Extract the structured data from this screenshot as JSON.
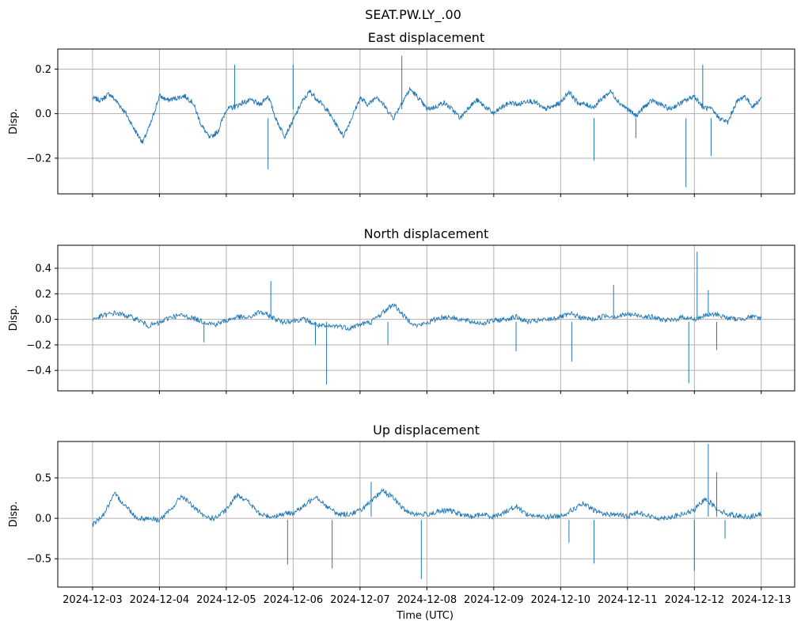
{
  "figure": {
    "suptitle": "SEAT.PW.LY_.00",
    "xlabel": "Time (UTC)",
    "line_color": "#1f77b4",
    "grid_color": "#b0b0b0"
  },
  "chart_data": [
    {
      "type": "line",
      "title": "East displacement",
      "ylabel": "Disp.",
      "ylim": [
        -0.36,
        0.29
      ],
      "yticks": [
        -0.2,
        0.0,
        0.2
      ],
      "ytick_labels": [
        "−0.2",
        "0.0",
        "0.2"
      ],
      "x_start": "2024-12-03",
      "x_end": "2024-12-13",
      "xticks": [
        "2024-12-03",
        "2024-12-04",
        "2024-12-05",
        "2024-12-06",
        "2024-12-07",
        "2024-12-08",
        "2024-12-09",
        "2024-12-10",
        "2024-12-11",
        "2024-12-12",
        "2024-12-13"
      ],
      "grid": true,
      "series": [
        {
          "x": [
            "2024-12-03T00:00",
            "2024-12-03T03:00",
            "2024-12-03T06:00",
            "2024-12-03T09:00",
            "2024-12-03T12:00",
            "2024-12-03T15:00",
            "2024-12-03T18:00",
            "2024-12-03T21:00",
            "2024-12-04T00:00",
            "2024-12-04T03:00",
            "2024-12-04T06:00",
            "2024-12-04T09:00",
            "2024-12-04T12:00",
            "2024-12-04T15:00",
            "2024-12-04T18:00",
            "2024-12-04T21:00",
            "2024-12-05T00:00",
            "2024-12-05T03:00",
            "2024-12-05T06:00",
            "2024-12-05T09:00",
            "2024-12-05T12:00",
            "2024-12-05T15:00",
            "2024-12-05T18:00",
            "2024-12-05T21:00",
            "2024-12-06T00:00",
            "2024-12-06T03:00",
            "2024-12-06T06:00",
            "2024-12-06T09:00",
            "2024-12-06T12:00",
            "2024-12-06T15:00",
            "2024-12-06T18:00",
            "2024-12-06T21:00",
            "2024-12-07T00:00",
            "2024-12-07T03:00",
            "2024-12-07T06:00",
            "2024-12-07T09:00",
            "2024-12-07T12:00",
            "2024-12-07T15:00",
            "2024-12-07T18:00",
            "2024-12-07T21:00",
            "2024-12-08T00:00",
            "2024-12-08T03:00",
            "2024-12-08T06:00",
            "2024-12-08T09:00",
            "2024-12-08T12:00",
            "2024-12-08T15:00",
            "2024-12-08T18:00",
            "2024-12-08T21:00",
            "2024-12-09T00:00",
            "2024-12-09T03:00",
            "2024-12-09T06:00",
            "2024-12-09T09:00",
            "2024-12-09T12:00",
            "2024-12-09T15:00",
            "2024-12-09T18:00",
            "2024-12-09T21:00",
            "2024-12-10T00:00",
            "2024-12-10T03:00",
            "2024-12-10T06:00",
            "2024-12-10T09:00",
            "2024-12-10T12:00",
            "2024-12-10T15:00",
            "2024-12-10T18:00",
            "2024-12-10T21:00",
            "2024-12-11T00:00",
            "2024-12-11T03:00",
            "2024-12-11T06:00",
            "2024-12-11T09:00",
            "2024-12-11T12:00",
            "2024-12-11T15:00",
            "2024-12-11T18:00",
            "2024-12-11T21:00",
            "2024-12-12T00:00",
            "2024-12-12T03:00",
            "2024-12-12T06:00",
            "2024-12-12T09:00",
            "2024-12-12T12:00",
            "2024-12-12T15:00",
            "2024-12-12T18:00",
            "2024-12-12T21:00",
            "2024-12-13T00:00"
          ],
          "y": [
            0.07,
            0.06,
            0.09,
            0.05,
            0.0,
            -0.07,
            -0.13,
            -0.04,
            0.08,
            0.06,
            0.07,
            0.08,
            0.05,
            -0.05,
            -0.11,
            -0.08,
            0.02,
            0.03,
            0.05,
            0.06,
            0.04,
            0.08,
            -0.03,
            -0.1,
            -0.03,
            0.05,
            0.1,
            0.06,
            0.02,
            -0.04,
            -0.1,
            -0.02,
            0.07,
            0.04,
            0.08,
            0.03,
            -0.02,
            0.05,
            0.11,
            0.07,
            0.02,
            0.03,
            0.05,
            0.02,
            -0.02,
            0.03,
            0.06,
            0.03,
            0.0,
            0.03,
            0.05,
            0.04,
            0.06,
            0.05,
            0.02,
            0.03,
            0.05,
            0.1,
            0.05,
            0.04,
            0.03,
            0.07,
            0.1,
            0.05,
            0.02,
            -0.01,
            0.03,
            0.06,
            0.04,
            0.02,
            0.04,
            0.06,
            0.08,
            0.03,
            0.02,
            -0.02,
            -0.04,
            0.05,
            0.08,
            0.03,
            0.07
          ]
        }
      ],
      "spikes": [
        {
          "x": "2024-12-05T03:00",
          "y": 0.22
        },
        {
          "x": "2024-12-05T15:00",
          "y": -0.25
        },
        {
          "x": "2024-12-06T00:00",
          "y": 0.22
        },
        {
          "x": "2024-12-07T15:00",
          "y": 0.26
        },
        {
          "x": "2024-12-10T12:00",
          "y": -0.21
        },
        {
          "x": "2024-12-11T03:00",
          "y": -0.11
        },
        {
          "x": "2024-12-11T21:00",
          "y": -0.33
        },
        {
          "x": "2024-12-12T03:00",
          "y": 0.22
        },
        {
          "x": "2024-12-12T06:00",
          "y": -0.19
        }
      ]
    },
    {
      "type": "line",
      "title": "North displacement",
      "ylabel": "Disp.",
      "ylim": [
        -0.56,
        0.58
      ],
      "yticks": [
        -0.4,
        -0.2,
        0.0,
        0.2,
        0.4
      ],
      "ytick_labels": [
        "−0.4",
        "−0.2",
        "0.0",
        "0.2",
        "0.4"
      ],
      "x_start": "2024-12-03",
      "x_end": "2024-12-13",
      "xticks": [
        "2024-12-03",
        "2024-12-04",
        "2024-12-05",
        "2024-12-06",
        "2024-12-07",
        "2024-12-08",
        "2024-12-09",
        "2024-12-10",
        "2024-12-11",
        "2024-12-12",
        "2024-12-13"
      ],
      "grid": true,
      "series": [
        {
          "x": [
            "2024-12-03T00:00",
            "2024-12-03T04:00",
            "2024-12-03T08:00",
            "2024-12-03T12:00",
            "2024-12-03T16:00",
            "2024-12-03T20:00",
            "2024-12-04T00:00",
            "2024-12-04T04:00",
            "2024-12-04T08:00",
            "2024-12-04T12:00",
            "2024-12-04T16:00",
            "2024-12-04T20:00",
            "2024-12-05T00:00",
            "2024-12-05T04:00",
            "2024-12-05T08:00",
            "2024-12-05T12:00",
            "2024-12-05T16:00",
            "2024-12-05T20:00",
            "2024-12-06T00:00",
            "2024-12-06T04:00",
            "2024-12-06T08:00",
            "2024-12-06T12:00",
            "2024-12-06T16:00",
            "2024-12-06T20:00",
            "2024-12-07T00:00",
            "2024-12-07T04:00",
            "2024-12-07T08:00",
            "2024-12-07T12:00",
            "2024-12-07T16:00",
            "2024-12-07T20:00",
            "2024-12-08T00:00",
            "2024-12-08T04:00",
            "2024-12-08T08:00",
            "2024-12-08T12:00",
            "2024-12-08T16:00",
            "2024-12-08T20:00",
            "2024-12-09T00:00",
            "2024-12-09T04:00",
            "2024-12-09T08:00",
            "2024-12-09T12:00",
            "2024-12-09T16:00",
            "2024-12-09T20:00",
            "2024-12-10T00:00",
            "2024-12-10T04:00",
            "2024-12-10T08:00",
            "2024-12-10T12:00",
            "2024-12-10T16:00",
            "2024-12-10T20:00",
            "2024-12-11T00:00",
            "2024-12-11T04:00",
            "2024-12-11T08:00",
            "2024-12-11T12:00",
            "2024-12-11T16:00",
            "2024-12-11T20:00",
            "2024-12-12T00:00",
            "2024-12-12T04:00",
            "2024-12-12T08:00",
            "2024-12-12T12:00",
            "2024-12-12T16:00",
            "2024-12-12T20:00",
            "2024-12-13T00:00"
          ],
          "y": [
            0.0,
            0.03,
            0.05,
            0.03,
            0.0,
            -0.05,
            -0.03,
            0.02,
            0.03,
            0.01,
            -0.02,
            -0.04,
            -0.01,
            0.02,
            0.01,
            0.06,
            0.02,
            -0.02,
            -0.01,
            0.0,
            -0.04,
            -0.06,
            -0.05,
            -0.07,
            -0.04,
            -0.02,
            0.05,
            0.12,
            0.02,
            -0.05,
            -0.03,
            0.01,
            0.02,
            0.0,
            -0.02,
            -0.03,
            -0.01,
            0.0,
            0.02,
            -0.02,
            -0.01,
            0.0,
            0.02,
            0.04,
            0.01,
            0.0,
            0.03,
            0.02,
            0.04,
            0.03,
            0.02,
            0.0,
            -0.01,
            0.02,
            0.0,
            0.03,
            0.04,
            0.01,
            0.0,
            0.02,
            0.01
          ]
        }
      ],
      "spikes": [
        {
          "x": "2024-12-04T16:00",
          "y": -0.18
        },
        {
          "x": "2024-12-05T16:00",
          "y": 0.3
        },
        {
          "x": "2024-12-06T12:00",
          "y": -0.51
        },
        {
          "x": "2024-12-06T08:00",
          "y": -0.2
        },
        {
          "x": "2024-12-07T10:00",
          "y": -0.2
        },
        {
          "x": "2024-12-09T08:00",
          "y": -0.25
        },
        {
          "x": "2024-12-10T04:00",
          "y": -0.33
        },
        {
          "x": "2024-12-10T19:00",
          "y": 0.27
        },
        {
          "x": "2024-12-11T22:00",
          "y": -0.5
        },
        {
          "x": "2024-12-12T01:00",
          "y": 0.53
        },
        {
          "x": "2024-12-12T05:00",
          "y": 0.23
        },
        {
          "x": "2024-12-12T08:00",
          "y": -0.24
        }
      ]
    },
    {
      "type": "line",
      "title": "Up displacement",
      "ylabel": "Disp.",
      "ylim": [
        -0.85,
        0.95
      ],
      "yticks": [
        -0.5,
        0.0,
        0.5
      ],
      "ytick_labels": [
        "−0.5",
        "0.0",
        "0.5"
      ],
      "x_start": "2024-12-03",
      "x_end": "2024-12-13",
      "xticks": [
        "2024-12-03",
        "2024-12-04",
        "2024-12-05",
        "2024-12-06",
        "2024-12-07",
        "2024-12-08",
        "2024-12-09",
        "2024-12-10",
        "2024-12-11",
        "2024-12-12",
        "2024-12-13"
      ],
      "grid": true,
      "series": [
        {
          "x": [
            "2024-12-03T00:00",
            "2024-12-03T04:00",
            "2024-12-03T08:00",
            "2024-12-03T12:00",
            "2024-12-03T16:00",
            "2024-12-03T20:00",
            "2024-12-04T00:00",
            "2024-12-04T04:00",
            "2024-12-04T08:00",
            "2024-12-04T12:00",
            "2024-12-04T16:00",
            "2024-12-04T20:00",
            "2024-12-05T00:00",
            "2024-12-05T04:00",
            "2024-12-05T08:00",
            "2024-12-05T12:00",
            "2024-12-05T16:00",
            "2024-12-05T20:00",
            "2024-12-06T00:00",
            "2024-12-06T04:00",
            "2024-12-06T08:00",
            "2024-12-06T12:00",
            "2024-12-06T16:00",
            "2024-12-06T20:00",
            "2024-12-07T00:00",
            "2024-12-07T04:00",
            "2024-12-07T08:00",
            "2024-12-07T12:00",
            "2024-12-07T16:00",
            "2024-12-07T20:00",
            "2024-12-08T00:00",
            "2024-12-08T04:00",
            "2024-12-08T08:00",
            "2024-12-08T12:00",
            "2024-12-08T16:00",
            "2024-12-08T20:00",
            "2024-12-09T00:00",
            "2024-12-09T04:00",
            "2024-12-09T08:00",
            "2024-12-09T12:00",
            "2024-12-09T16:00",
            "2024-12-09T20:00",
            "2024-12-10T00:00",
            "2024-12-10T04:00",
            "2024-12-10T08:00",
            "2024-12-10T12:00",
            "2024-12-10T16:00",
            "2024-12-10T20:00",
            "2024-12-11T00:00",
            "2024-12-11T04:00",
            "2024-12-11T08:00",
            "2024-12-11T12:00",
            "2024-12-11T16:00",
            "2024-12-11T20:00",
            "2024-12-12T00:00",
            "2024-12-12T04:00",
            "2024-12-12T08:00",
            "2024-12-12T12:00",
            "2024-12-12T16:00",
            "2024-12-12T20:00",
            "2024-12-13T00:00"
          ],
          "y": [
            -0.08,
            0.05,
            0.3,
            0.15,
            0.0,
            0.0,
            -0.02,
            0.1,
            0.28,
            0.15,
            0.02,
            0.0,
            0.1,
            0.3,
            0.2,
            0.05,
            0.02,
            0.05,
            0.07,
            0.15,
            0.28,
            0.15,
            0.05,
            0.05,
            0.1,
            0.2,
            0.35,
            0.25,
            0.1,
            0.05,
            0.05,
            0.08,
            0.1,
            0.05,
            0.02,
            0.05,
            0.02,
            0.08,
            0.15,
            0.05,
            0.02,
            0.02,
            0.03,
            0.1,
            0.18,
            0.1,
            0.05,
            0.05,
            0.02,
            0.08,
            0.02,
            0.0,
            0.02,
            0.05,
            0.1,
            0.25,
            0.12,
            0.05,
            0.03,
            0.02,
            0.05
          ]
        }
      ],
      "spikes": [
        {
          "x": "2024-12-05T22:00",
          "y": -0.57
        },
        {
          "x": "2024-12-06T14:00",
          "y": -0.62
        },
        {
          "x": "2024-12-07T04:00",
          "y": 0.45
        },
        {
          "x": "2024-12-07T22:00",
          "y": -0.75
        },
        {
          "x": "2024-12-10T03:00",
          "y": -0.3
        },
        {
          "x": "2024-12-10T12:00",
          "y": -0.56
        },
        {
          "x": "2024-12-12T00:00",
          "y": -0.65
        },
        {
          "x": "2024-12-12T05:00",
          "y": 0.92
        },
        {
          "x": "2024-12-12T08:00",
          "y": 0.57
        },
        {
          "x": "2024-12-12T11:00",
          "y": -0.25
        }
      ]
    }
  ]
}
